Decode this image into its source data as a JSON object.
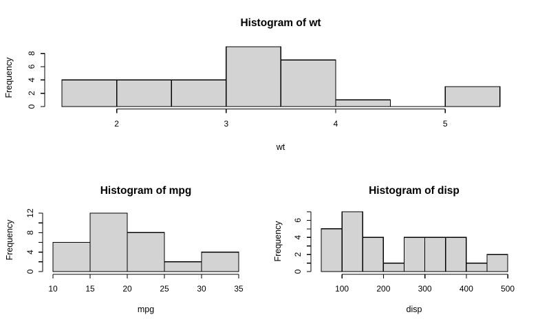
{
  "figure": {
    "background": "#ffffff",
    "bar_fill": "#d3d3d3",
    "bar_stroke": "#000000",
    "axis_color": "#000000",
    "text_color": "#000000"
  },
  "chart_data": [
    {
      "id": "wt",
      "type": "bar",
      "subtype": "histogram",
      "title": "Histogram of wt",
      "xlabel": "wt",
      "ylabel": "Frequency",
      "breaks": [
        1.5,
        2.0,
        2.5,
        3.0,
        3.5,
        4.0,
        4.5,
        5.0,
        5.5
      ],
      "counts": [
        4,
        4,
        4,
        9,
        7,
        1,
        0,
        3
      ],
      "x_ticks": [
        2,
        3,
        4,
        5
      ],
      "y_ticks": [
        0,
        2,
        4,
        6,
        8
      ],
      "y_labeled_ticks": [
        0,
        2,
        4,
        6,
        8
      ],
      "xlim": [
        1.5,
        5.5
      ],
      "ylim": [
        0,
        9
      ],
      "grid": false,
      "legend": null
    },
    {
      "id": "mpg",
      "type": "bar",
      "subtype": "histogram",
      "title": "Histogram of mpg",
      "xlabel": "mpg",
      "ylabel": "Frequency",
      "breaks": [
        10,
        15,
        20,
        25,
        30,
        35
      ],
      "counts": [
        6,
        12,
        8,
        2,
        4
      ],
      "x_ticks": [
        10,
        15,
        20,
        25,
        30,
        35
      ],
      "y_ticks": [
        0,
        2,
        4,
        6,
        8,
        10,
        12
      ],
      "y_labeled_ticks": [
        0,
        4,
        8,
        12
      ],
      "xlim": [
        10,
        35
      ],
      "ylim": [
        0,
        12
      ],
      "grid": false,
      "legend": null
    },
    {
      "id": "disp",
      "type": "bar",
      "subtype": "histogram",
      "title": "Histogram of disp",
      "xlabel": "disp",
      "ylabel": "Frequency",
      "breaks": [
        50,
        100,
        150,
        200,
        250,
        300,
        350,
        400,
        450,
        500
      ],
      "counts": [
        5,
        7,
        4,
        1,
        4,
        4,
        4,
        1,
        2
      ],
      "x_ticks": [
        100,
        200,
        300,
        400,
        500
      ],
      "y_ticks": [
        0,
        1,
        2,
        3,
        4,
        5,
        6,
        7
      ],
      "y_labeled_ticks": [
        0,
        2,
        4,
        6
      ],
      "xlim": [
        50,
        500
      ],
      "ylim": [
        0,
        7
      ],
      "grid": false,
      "legend": null
    }
  ]
}
